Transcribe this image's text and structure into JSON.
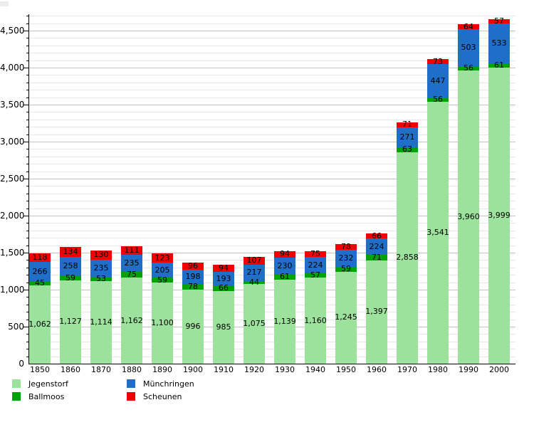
{
  "chart_data": {
    "type": "bar",
    "stacked": true,
    "title": "",
    "xlabel": "",
    "ylabel": "",
    "categories": [
      "1850",
      "1860",
      "1870",
      "1880",
      "1890",
      "1900",
      "1910",
      "1920",
      "1930",
      "1940",
      "1950",
      "1960",
      "1970",
      "1980",
      "1990",
      "2000"
    ],
    "series": [
      {
        "name": "Jegenstorf",
        "color": "#9CE29C",
        "values": [
          1062,
          1127,
          1114,
          1162,
          1100,
          996,
          985,
          1075,
          1139,
          1160,
          1245,
          1397,
          2858,
          3541,
          3960,
          3999
        ]
      },
      {
        "name": "Ballmoos",
        "color": "#00A307",
        "values": [
          45,
          59,
          53,
          75,
          59,
          78,
          66,
          44,
          61,
          57,
          59,
          71,
          63,
          56,
          56,
          61
        ]
      },
      {
        "name": "Münchringen",
        "color": "#1F6EC8",
        "values": [
          266,
          258,
          235,
          235,
          205,
          198,
          193,
          217,
          230,
          224,
          232,
          224,
          271,
          447,
          503,
          533
        ]
      },
      {
        "name": "Scheunen",
        "color": "#F00000",
        "values": [
          118,
          134,
          130,
          111,
          123,
          96,
          94,
          107,
          94,
          75,
          78,
          66,
          71,
          73,
          64,
          57
        ]
      }
    ],
    "ylim": [
      0,
      4800
    ],
    "y_ticks": [
      0,
      500,
      1000,
      1500,
      2000,
      2500,
      3000,
      3500,
      4000,
      4500
    ],
    "minor_tick_step": 100,
    "grid": true,
    "legend_position": "bottom-left",
    "value_labels": "inside-segments, thousands separated with commas",
    "colors": {
      "grid_minor": "#e6e6e6",
      "grid_major": "#c4c4c4",
      "axis": "#000000",
      "label_text": "#000000",
      "background": "#ffffff"
    }
  }
}
